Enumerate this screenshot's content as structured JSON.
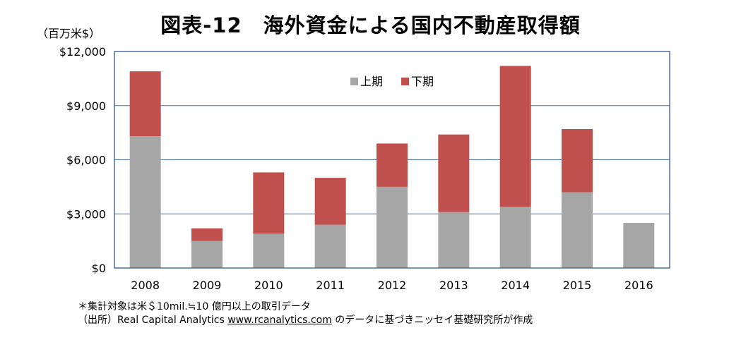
{
  "title": "図表-12　海外資金による国内不動産取得額",
  "unit_label": "（百万米$）",
  "chart_data": {
    "type": "bar",
    "stacked": true,
    "categories": [
      "2008",
      "2009",
      "2010",
      "2011",
      "2012",
      "2013",
      "2014",
      "2015",
      "2016"
    ],
    "series": [
      {
        "name": "上期",
        "color": "#a6a6a6",
        "values": [
          7300,
          1500,
          1900,
          2400,
          4500,
          3100,
          3400,
          4200,
          2500
        ]
      },
      {
        "name": "下期",
        "color": "#c0504d",
        "values": [
          3600,
          700,
          3400,
          2600,
          2400,
          4300,
          7800,
          3500,
          0
        ]
      }
    ],
    "ylim": [
      0,
      12000
    ],
    "yticks": [
      0,
      3000,
      6000,
      9000,
      12000
    ],
    "ytick_labels": [
      "$0",
      "$3,000",
      "$6,000",
      "$9,000",
      "$12,000"
    ],
    "grid": true,
    "legend_position": "top-center",
    "xlabel": "",
    "ylabel": ""
  },
  "footnote": {
    "line1": "＊集計対象は米＄10mil.≒10 億円以上の取引データ",
    "line2_prefix": "（出所）Real Capital Analytics ",
    "line2_link": "www.rcanalytics.com",
    "line2_suffix": " のデータに基づきニッセイ基礎研究所が作成"
  }
}
